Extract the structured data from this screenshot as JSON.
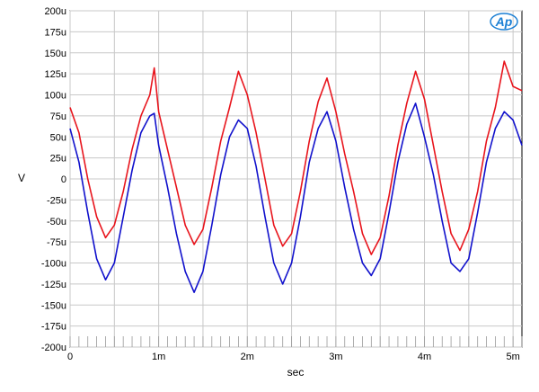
{
  "chart_data": {
    "type": "line",
    "title": "",
    "xlabel": "sec",
    "ylabel": "V",
    "xlim": [
      0,
      0.0051
    ],
    "ylim": [
      -200,
      200
    ],
    "y_unit": "u (micro-volts)",
    "grid": true,
    "legend": "none",
    "logo_text": "AP",
    "x_ticks": [
      {
        "value": 0,
        "label": "0"
      },
      {
        "value": 0.001,
        "label": "1m"
      },
      {
        "value": 0.002,
        "label": "2m"
      },
      {
        "value": 0.003,
        "label": "3m"
      },
      {
        "value": 0.004,
        "label": "4m"
      },
      {
        "value": 0.005,
        "label": "5m"
      }
    ],
    "y_ticks": [
      {
        "value": 200,
        "label": "200u"
      },
      {
        "value": 175,
        "label": "175u"
      },
      {
        "value": 150,
        "label": "150u"
      },
      {
        "value": 125,
        "label": "125u"
      },
      {
        "value": 100,
        "label": "100u"
      },
      {
        "value": 75,
        "label": "75u"
      },
      {
        "value": 50,
        "label": "50u"
      },
      {
        "value": 25,
        "label": "25u"
      },
      {
        "value": 0,
        "label": "0"
      },
      {
        "value": -25,
        "label": "-25u"
      },
      {
        "value": -50,
        "label": "-50u"
      },
      {
        "value": -75,
        "label": "-75u"
      },
      {
        "value": -100,
        "label": "-100u"
      },
      {
        "value": -125,
        "label": "-125u"
      },
      {
        "value": -150,
        "label": "-150u"
      },
      {
        "value": -175,
        "label": "-175u"
      },
      {
        "value": -200,
        "label": "-200u"
      }
    ],
    "colors": {
      "red": "#e8141c",
      "blue": "#1111cc",
      "grid": "#c8c8c8",
      "logo": "#1a7fd4"
    },
    "series": [
      {
        "color": "#e8141c",
        "x": [
          0,
          0.0001,
          0.0002,
          0.0003,
          0.0004,
          0.0005,
          0.0006,
          0.0007,
          0.0008,
          0.0009,
          0.00095,
          0.001,
          0.0011,
          0.0012,
          0.0013,
          0.0014,
          0.0015,
          0.0016,
          0.0017,
          0.0018,
          0.0019,
          0.002,
          0.0021,
          0.0022,
          0.0023,
          0.0024,
          0.0025,
          0.0026,
          0.0027,
          0.0028,
          0.0029,
          0.003,
          0.0031,
          0.0032,
          0.0033,
          0.0034,
          0.0035,
          0.0036,
          0.0037,
          0.0038,
          0.0039,
          0.004,
          0.0041,
          0.0042,
          0.0043,
          0.0044,
          0.0045,
          0.0046,
          0.0047,
          0.0048,
          0.0049,
          0.005,
          0.0051
        ],
        "y": [
          85,
          55,
          0,
          -45,
          -70,
          -55,
          -15,
          35,
          75,
          100,
          132,
          80,
          35,
          -10,
          -55,
          -78,
          -60,
          -10,
          45,
          85,
          128,
          100,
          55,
          0,
          -55,
          -80,
          -65,
          -15,
          45,
          92,
          120,
          80,
          30,
          -15,
          -65,
          -90,
          -70,
          -20,
          40,
          90,
          128,
          95,
          40,
          -15,
          -65,
          -85,
          -60,
          -15,
          45,
          85,
          140,
          110,
          105
        ]
      },
      {
        "color": "#1111cc",
        "x": [
          0,
          0.0001,
          0.0002,
          0.0003,
          0.0004,
          0.0005,
          0.0006,
          0.0007,
          0.0008,
          0.0009,
          0.00095,
          0.001,
          0.0011,
          0.0012,
          0.0013,
          0.0014,
          0.0015,
          0.0016,
          0.0017,
          0.0018,
          0.0019,
          0.002,
          0.0021,
          0.0022,
          0.0023,
          0.0024,
          0.0025,
          0.0026,
          0.0027,
          0.0028,
          0.0029,
          0.003,
          0.0031,
          0.0032,
          0.0033,
          0.0034,
          0.0035,
          0.0036,
          0.0037,
          0.0038,
          0.0039,
          0.004,
          0.0041,
          0.0042,
          0.0043,
          0.0044,
          0.0045,
          0.0046,
          0.0047,
          0.0048,
          0.0049,
          0.005,
          0.0051
        ],
        "y": [
          60,
          20,
          -40,
          -95,
          -120,
          -100,
          -45,
          10,
          55,
          75,
          78,
          40,
          -10,
          -65,
          -110,
          -135,
          -110,
          -55,
          5,
          50,
          70,
          60,
          15,
          -45,
          -100,
          -125,
          -100,
          -45,
          20,
          60,
          80,
          45,
          -10,
          -60,
          -100,
          -115,
          -95,
          -40,
          20,
          65,
          90,
          50,
          5,
          -50,
          -100,
          -110,
          -95,
          -40,
          20,
          60,
          80,
          70,
          40
        ]
      }
    ]
  }
}
